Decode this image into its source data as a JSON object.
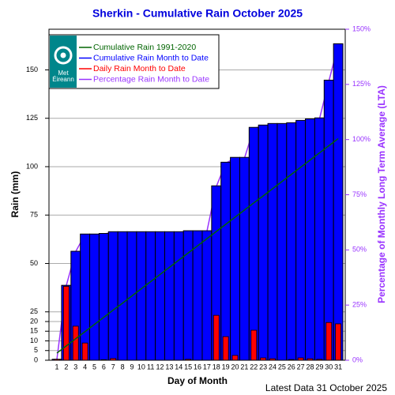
{
  "chart_data": {
    "type": "bar",
    "title": "Sherkin - Cumulative Rain October   2025",
    "x_label": "Day of Month",
    "y_label": "Rain (mm)",
    "y2_label": "Percentage  of Monthly Long Term Average (LTA)",
    "footer": "Latest Data 31 October 2025",
    "logo_text": [
      "Met",
      "Éireann"
    ],
    "categories": [
      "1",
      "2",
      "3",
      "4",
      "5",
      "6",
      "7",
      "8",
      "9",
      "10",
      "11",
      "12",
      "13",
      "14",
      "15",
      "16",
      "17",
      "18",
      "19",
      "20",
      "21",
      "22",
      "23",
      "24",
      "25",
      "26",
      "27",
      "28",
      "29",
      "30",
      "31"
    ],
    "series": [
      {
        "name": "Cumulative Rain 1991-2020",
        "color": "#006400",
        "kind": "line",
        "values": [
          3.7,
          7.4,
          11.1,
          14.8,
          18.5,
          22.2,
          25.9,
          29.5,
          33.2,
          36.9,
          40.6,
          44.3,
          48.0,
          51.7,
          55.4,
          59.1,
          62.8,
          66.5,
          70.2,
          73.9,
          77.6,
          81.3,
          84.9,
          88.6,
          92.3,
          96.0,
          99.7,
          103.4,
          107.1,
          110.8,
          114.5
        ]
      },
      {
        "name": "Cumulative Rain Month to Date",
        "color": "#0000ff",
        "kind": "bar",
        "values": [
          0.5,
          38.7,
          56.3,
          65.2,
          65.2,
          65.5,
          66.4,
          66.4,
          66.4,
          66.4,
          66.4,
          66.4,
          66.4,
          66.4,
          66.9,
          66.9,
          66.9,
          90.1,
          102.3,
          104.8,
          104.8,
          120.3,
          121.5,
          122.3,
          122.3,
          122.7,
          123.9,
          124.7,
          125.2,
          144.7,
          163.5
        ]
      },
      {
        "name": "Daily Rain Month to Date",
        "color": "#ff0000",
        "kind": "narrow_bar",
        "values": [
          0.5,
          38.2,
          17.6,
          8.9,
          0,
          0.3,
          0.9,
          0,
          0,
          0,
          0,
          0,
          0,
          0,
          0.5,
          0,
          0,
          23.2,
          12.2,
          2.5,
          0,
          15.5,
          1.2,
          0.8,
          0,
          0.4,
          1.2,
          0.8,
          0.5,
          19.5,
          18.8
        ]
      },
      {
        "name": "Percentage Rain Month to Date",
        "color": "#9933ff",
        "kind": "line",
        "axis": "y2",
        "values": [
          0.4,
          33.8,
          49.2,
          56.9,
          56.9,
          57.2,
          58.0,
          58.0,
          58.0,
          58.0,
          58.0,
          58.0,
          58.0,
          58.0,
          58.4,
          58.4,
          58.4,
          78.7,
          89.3,
          91.5,
          91.5,
          105.1,
          106.1,
          106.8,
          106.8,
          107.2,
          108.2,
          108.9,
          109.3,
          126.4,
          142.8
        ]
      }
    ],
    "ylim": [
      0,
      171
    ],
    "yticks": [
      0,
      5,
      10,
      15,
      20,
      25,
      50,
      75,
      100,
      125,
      150
    ],
    "y2lim": [
      0,
      150
    ],
    "y2ticks": [
      {
        "value": 0,
        "label": "0%"
      },
      {
        "value": 25,
        "label": "25%"
      },
      {
        "value": 50,
        "label": "50%"
      },
      {
        "value": 75,
        "label": "75%"
      },
      {
        "value": 100,
        "label": "100%"
      },
      {
        "value": 125,
        "label": "125%"
      },
      {
        "value": 150,
        "label": "150%"
      }
    ],
    "y2_color": "#9933ff",
    "grid": true,
    "legend": "top-left"
  }
}
